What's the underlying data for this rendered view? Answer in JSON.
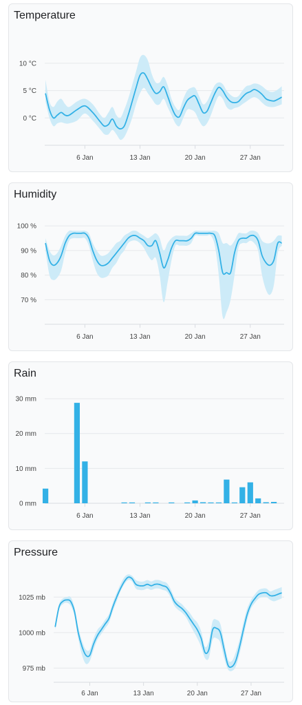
{
  "colors": {
    "line": "#33b1e6",
    "band": "#cdebf8",
    "bar": "#33b1e6"
  },
  "chart_data": [
    {
      "type": "area",
      "title": "Temperature",
      "xlabel": "",
      "ylabel": "",
      "x_ticks": [
        {
          "label": "6 Jan",
          "day": 6
        },
        {
          "label": "13 Jan",
          "day": 13
        },
        {
          "label": "20 Jan",
          "day": 20
        },
        {
          "label": "27 Jan",
          "day": 27
        }
      ],
      "y_ticks": [
        {
          "label": "10 °C",
          "value": 10
        },
        {
          "label": "5 °C",
          "value": 5
        },
        {
          "label": "0 °C",
          "value": 0
        }
      ],
      "x_range": [
        0.9,
        31.3
      ],
      "y_range": [
        -5,
        12
      ],
      "grid": true,
      "series": [
        {
          "x": [
            1,
            1.5,
            2,
            2.5,
            3,
            3.5,
            4,
            5,
            6,
            7,
            8,
            8.5,
            9,
            9.5,
            10,
            10.5,
            11,
            11.5,
            12,
            12.5,
            13,
            13.5,
            14,
            14.5,
            15,
            15.5,
            16,
            16.5,
            17,
            17.5,
            18,
            18.5,
            19,
            19.5,
            20,
            20.5,
            21,
            21.5,
            22,
            22.5,
            23,
            23.5,
            24,
            24.5,
            25,
            25.5,
            26,
            26.5,
            27,
            27.5,
            28,
            28.5,
            29,
            29.5,
            30,
            30.5,
            31
          ],
          "y": [
            4.5,
            1.5,
            0,
            0.5,
            1,
            0.5,
            0.5,
            1.5,
            2.2,
            1,
            -0.8,
            -1.5,
            -1.2,
            -0.2,
            -1.5,
            -2,
            -1.5,
            0.5,
            3,
            5.5,
            7.8,
            8.2,
            7,
            5.5,
            4.5,
            4.8,
            5.7,
            4,
            2,
            0.5,
            0.2,
            1.8,
            3.2,
            3.8,
            4,
            2.5,
            1,
            1.2,
            2.8,
            4.5,
            5.6,
            5,
            3.8,
            3,
            2.8,
            3,
            3.8,
            4.5,
            4.8,
            5.2,
            4.9,
            4.3,
            3.5,
            3.2,
            3.1,
            3.4,
            3.8
          ],
          "low": [
            3,
            0,
            -1.5,
            -1,
            -0.8,
            -1,
            -1,
            -0.5,
            0.8,
            -0.5,
            -2.2,
            -3,
            -3,
            -2.2,
            -3,
            -4,
            -3.5,
            -2,
            0,
            2.5,
            4.5,
            5.5,
            4.5,
            3.5,
            2.5,
            2.5,
            3.5,
            2,
            0.5,
            -1,
            -1.5,
            0,
            1.5,
            1.5,
            1,
            -0.5,
            -1.5,
            -1,
            0.5,
            2.5,
            4,
            3.5,
            2,
            1.5,
            1.8,
            2,
            2.5,
            3,
            3.5,
            3.8,
            3.5,
            2.8,
            2.2,
            2,
            2,
            2.2,
            2.5
          ],
          "high": [
            7,
            3,
            2,
            3,
            3.5,
            2.5,
            2,
            3,
            3.5,
            2.5,
            0.5,
            0,
            1,
            2,
            0.5,
            0,
            1.5,
            3.5,
            6,
            8.5,
            11,
            11.5,
            10.5,
            8,
            6.5,
            6.5,
            7.5,
            6,
            3.5,
            2,
            1.5,
            3.5,
            5,
            5.5,
            5.5,
            4,
            2.5,
            3,
            4.5,
            6,
            6.5,
            6.2,
            5,
            4.2,
            3.8,
            4,
            5,
            5.8,
            6,
            6.3,
            6.2,
            5.8,
            5.2,
            4.8,
            4.8,
            5.2,
            5.8
          ]
        }
      ]
    },
    {
      "type": "area",
      "title": "Humidity",
      "xlabel": "",
      "ylabel": "",
      "x_ticks": [
        {
          "label": "6 Jan",
          "day": 6
        },
        {
          "label": "13 Jan",
          "day": 13
        },
        {
          "label": "20 Jan",
          "day": 20
        },
        {
          "label": "27 Jan",
          "day": 27
        }
      ],
      "y_ticks": [
        {
          "label": "100 %",
          "value": 100
        },
        {
          "label": "90 %",
          "value": 90
        },
        {
          "label": "80 %",
          "value": 80
        },
        {
          "label": "70 %",
          "value": 70
        }
      ],
      "x_range": [
        0.9,
        31.3
      ],
      "y_range": [
        60,
        102
      ],
      "grid": true,
      "series": [
        {
          "x": [
            1,
            1.5,
            2,
            2.5,
            3,
            3.5,
            4,
            4.5,
            5,
            5.5,
            6,
            6.5,
            7,
            7.5,
            8,
            8.5,
            9,
            9.5,
            10,
            10.5,
            11,
            11.5,
            12,
            12.5,
            13,
            13.5,
            14,
            14.5,
            15,
            15.5,
            16,
            16.5,
            17,
            17.5,
            18,
            18.5,
            19,
            19.5,
            20,
            20.5,
            21,
            21.5,
            22,
            22.5,
            23,
            23.5,
            24,
            24.5,
            25,
            25.5,
            26,
            26.5,
            27,
            27.5,
            28,
            28.5,
            29,
            29.5,
            30,
            30.5,
            31
          ],
          "y": [
            93,
            86,
            84,
            85,
            88,
            93,
            96,
            97,
            97,
            97,
            97,
            95,
            90,
            86,
            84,
            84,
            85,
            87,
            89,
            91,
            93,
            95,
            96,
            96,
            95,
            94,
            92,
            92,
            94,
            89,
            83,
            86,
            91,
            94,
            94,
            94,
            94,
            95,
            97,
            97,
            97,
            97,
            97,
            96,
            90,
            81,
            81,
            81,
            89,
            94,
            95,
            95,
            96,
            96,
            94,
            88,
            85,
            84,
            86,
            93,
            93
          ],
          "low": [
            90,
            80,
            78,
            79,
            82,
            89,
            94,
            95,
            95,
            95,
            95,
            92,
            86,
            81,
            79,
            79,
            80,
            83,
            85,
            88,
            90,
            93,
            94,
            94,
            93,
            91,
            88,
            86,
            87,
            80,
            69,
            77,
            86,
            92,
            92,
            92,
            92,
            93,
            96,
            96,
            96,
            96,
            96,
            92,
            80,
            63,
            65,
            70,
            80,
            91,
            93,
            93,
            94,
            93,
            90,
            80,
            74,
            72,
            76,
            89,
            92
          ],
          "high": [
            95,
            90,
            88,
            89,
            92,
            96,
            98,
            98,
            98,
            98,
            98,
            97,
            93,
            90,
            88,
            88,
            89,
            91,
            93,
            94,
            96,
            97,
            98,
            98,
            97,
            96,
            95,
            96,
            97,
            95,
            90,
            93,
            95,
            96,
            96,
            96,
            96,
            97,
            98,
            98,
            98,
            98,
            98,
            98,
            97,
            93,
            93,
            92,
            94,
            97,
            97,
            97,
            98,
            98,
            97,
            94,
            93,
            93,
            94,
            96,
            96
          ]
        }
      ]
    },
    {
      "type": "bar",
      "title": "Rain",
      "xlabel": "",
      "ylabel": "",
      "x_ticks": [
        {
          "label": "6 Jan",
          "day": 6
        },
        {
          "label": "13 Jan",
          "day": 13
        },
        {
          "label": "20 Jan",
          "day": 20
        },
        {
          "label": "27 Jan",
          "day": 27
        }
      ],
      "y_ticks": [
        {
          "label": "30 mm",
          "value": 30
        },
        {
          "label": "20 mm",
          "value": 20
        },
        {
          "label": "10 mm",
          "value": 10
        },
        {
          "label": "0 mm",
          "value": 0
        }
      ],
      "x_range": [
        0.9,
        31.3
      ],
      "y_range": [
        0,
        31
      ],
      "grid": true,
      "series": [
        {
          "x": [
            1,
            5,
            6,
            11,
            12,
            14,
            15,
            17,
            19,
            20,
            21,
            22,
            23,
            24,
            25,
            26,
            27,
            28,
            29,
            30
          ],
          "values": [
            4.2,
            28.8,
            12,
            0.1,
            0.1,
            0.1,
            0.1,
            0.1,
            0.1,
            0.8,
            0.3,
            0.1,
            0.1,
            6.8,
            0.1,
            4.6,
            6.0,
            1.4,
            0.3,
            0.4
          ]
        }
      ]
    },
    {
      "type": "area",
      "title": "Pressure",
      "xlabel": "",
      "ylabel": "",
      "x_ticks": [
        {
          "label": "6 Jan",
          "day": 6
        },
        {
          "label": "13 Jan",
          "day": 13
        },
        {
          "label": "20 Jan",
          "day": 20
        },
        {
          "label": "27 Jan",
          "day": 27
        }
      ],
      "y_ticks": [
        {
          "label": "1025 mb",
          "value": 1025
        },
        {
          "label": "1000 mb",
          "value": 1000
        },
        {
          "label": "975 mb",
          "value": 975
        }
      ],
      "x_range": [
        1.3,
        31.3
      ],
      "y_range": [
        965,
        1045
      ],
      "grid": true,
      "series": [
        {
          "x": [
            1.5,
            2,
            2.5,
            3,
            3.5,
            4,
            4.5,
            5,
            5.5,
            6,
            6.5,
            7,
            7.5,
            8,
            8.5,
            9,
            9.5,
            10,
            10.5,
            11,
            11.5,
            12,
            12.5,
            13,
            13.5,
            14,
            14.5,
            15,
            15.5,
            16,
            16.5,
            17,
            17.5,
            18,
            18.5,
            19,
            19.5,
            20,
            20.5,
            21,
            21.5,
            22,
            22.5,
            23,
            23.5,
            24,
            24.5,
            25,
            25.5,
            26,
            26.5,
            27,
            27.5,
            28,
            28.5,
            29,
            29.5,
            30,
            30.5,
            31
          ],
          "y": [
            1004,
            1018,
            1022,
            1023,
            1022,
            1015,
            1000,
            990,
            984,
            984,
            992,
            998,
            1002,
            1006,
            1010,
            1018,
            1025,
            1031,
            1036,
            1039,
            1038,
            1034,
            1033,
            1033,
            1034,
            1033,
            1034,
            1034,
            1033,
            1032,
            1028,
            1022,
            1019,
            1017,
            1014,
            1010,
            1006,
            1002,
            996,
            986,
            988,
            1002,
            1003,
            1000,
            988,
            977,
            976,
            980,
            990,
            1002,
            1013,
            1020,
            1024,
            1027,
            1028,
            1028,
            1026,
            1026,
            1027,
            1028
          ],
          "low": [
            1002,
            1016,
            1020,
            1021,
            1019,
            1012,
            996,
            984,
            978,
            980,
            988,
            995,
            999,
            1003,
            1007,
            1015,
            1022,
            1029,
            1034,
            1037,
            1036,
            1031,
            1030,
            1030,
            1031,
            1030,
            1031,
            1031,
            1030,
            1029,
            1025,
            1019,
            1016,
            1014,
            1011,
            1006,
            1001,
            996,
            990,
            982,
            982,
            995,
            996,
            993,
            982,
            974,
            973,
            976,
            985,
            997,
            1009,
            1017,
            1021,
            1024,
            1025,
            1025,
            1023,
            1022,
            1023,
            1024
          ],
          "high": [
            1006,
            1020,
            1024,
            1025,
            1025,
            1018,
            1004,
            994,
            988,
            988,
            996,
            1002,
            1005,
            1009,
            1013,
            1021,
            1028,
            1034,
            1039,
            1041,
            1040,
            1037,
            1036,
            1036,
            1037,
            1036,
            1037,
            1037,
            1036,
            1035,
            1031,
            1025,
            1022,
            1020,
            1017,
            1014,
            1010,
            1007,
            1001,
            990,
            994,
            1008,
            1009,
            1006,
            993,
            981,
            980,
            986,
            995,
            1007,
            1017,
            1023,
            1027,
            1030,
            1031,
            1031,
            1029,
            1030,
            1031,
            1032
          ]
        }
      ]
    }
  ]
}
